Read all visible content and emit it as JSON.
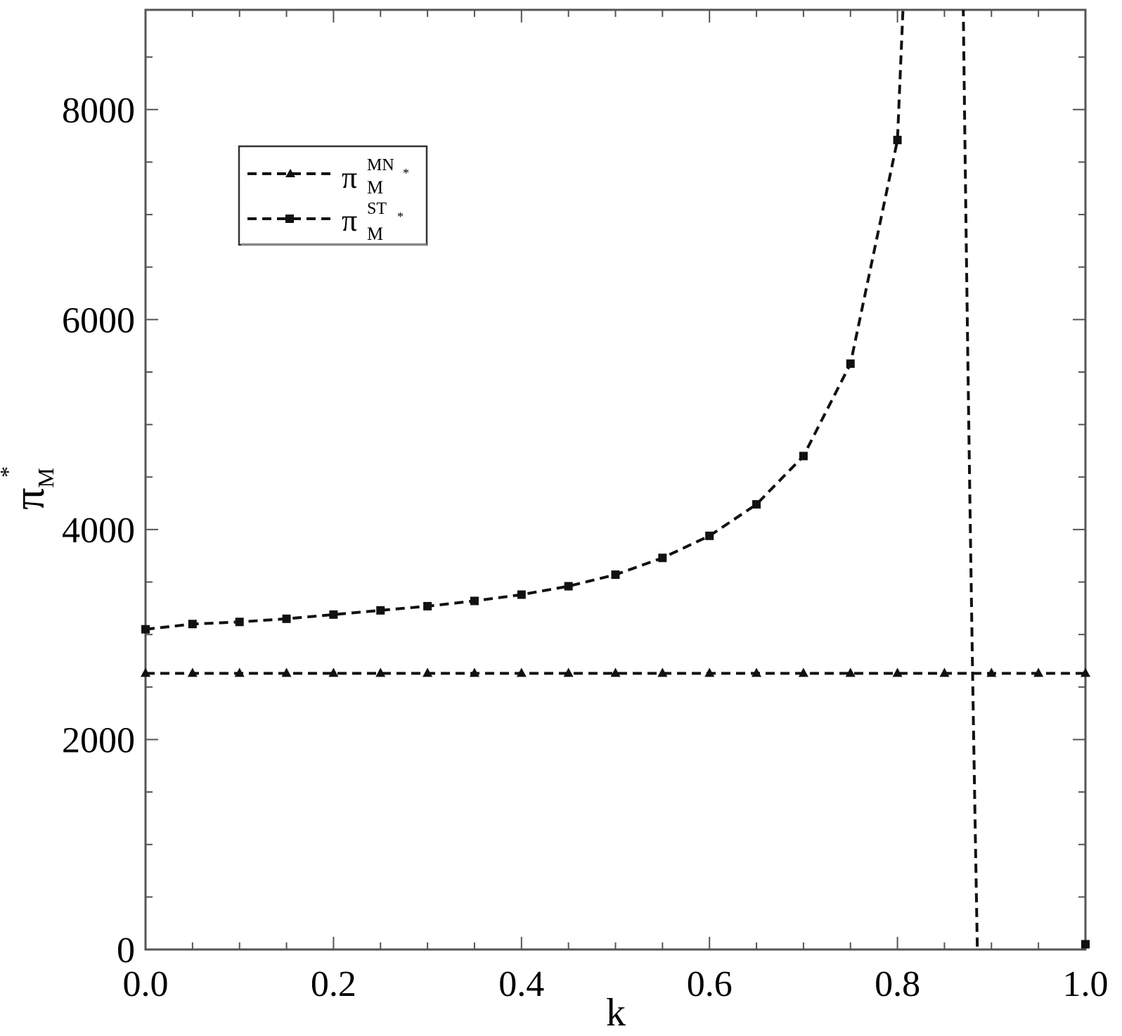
{
  "chart_data": {
    "type": "line",
    "xlabel": "k",
    "ylabel": {
      "symbol": "π",
      "subscript": "M",
      "superscript": "*"
    },
    "xlim": [
      0.0,
      1.0
    ],
    "ylim": [
      0,
      8950
    ],
    "xticks": [
      "0.0",
      "0.2",
      "0.4",
      "0.6",
      "0.8",
      "1.0"
    ],
    "yticks": [
      "0",
      "2000",
      "4000",
      "6000",
      "8000"
    ],
    "xtick_values": [
      0.0,
      0.2,
      0.4,
      0.6,
      0.8,
      1.0
    ],
    "ytick_values": [
      0,
      2000,
      4000,
      6000,
      8000
    ],
    "grid": false,
    "legend_position": "top-left",
    "series": [
      {
        "legend": {
          "symbol": "π",
          "superscript": "MN",
          "superscript_mark": "*",
          "subscript": "M"
        },
        "marker": "triangle",
        "line_style": "dashed",
        "x": [
          0.0,
          0.05,
          0.1,
          0.15,
          0.2,
          0.25,
          0.3,
          0.35,
          0.4,
          0.45,
          0.5,
          0.55,
          0.6,
          0.65,
          0.7,
          0.75,
          0.8,
          0.85,
          0.9,
          0.95,
          1.0
        ],
        "values": [
          2630,
          2630,
          2630,
          2630,
          2630,
          2630,
          2630,
          2630,
          2630,
          2630,
          2630,
          2630,
          2630,
          2630,
          2630,
          2630,
          2630,
          2630,
          2630,
          2630,
          2630
        ]
      },
      {
        "legend": {
          "symbol": "π",
          "superscript": "ST",
          "superscript_mark": "*",
          "subscript": "M"
        },
        "marker": "square",
        "line_style": "dashed",
        "x": [
          0.0,
          0.05,
          0.1,
          0.15,
          0.2,
          0.25,
          0.3,
          0.35,
          0.4,
          0.45,
          0.5,
          0.55,
          0.6,
          0.65,
          0.7,
          0.75,
          0.8,
          1.0
        ],
        "values": [
          3050,
          3100,
          3120,
          3150,
          3190,
          3230,
          3270,
          3320,
          3380,
          3460,
          3570,
          3730,
          3940,
          4240,
          4700,
          5580,
          7710,
          50
        ]
      }
    ]
  }
}
